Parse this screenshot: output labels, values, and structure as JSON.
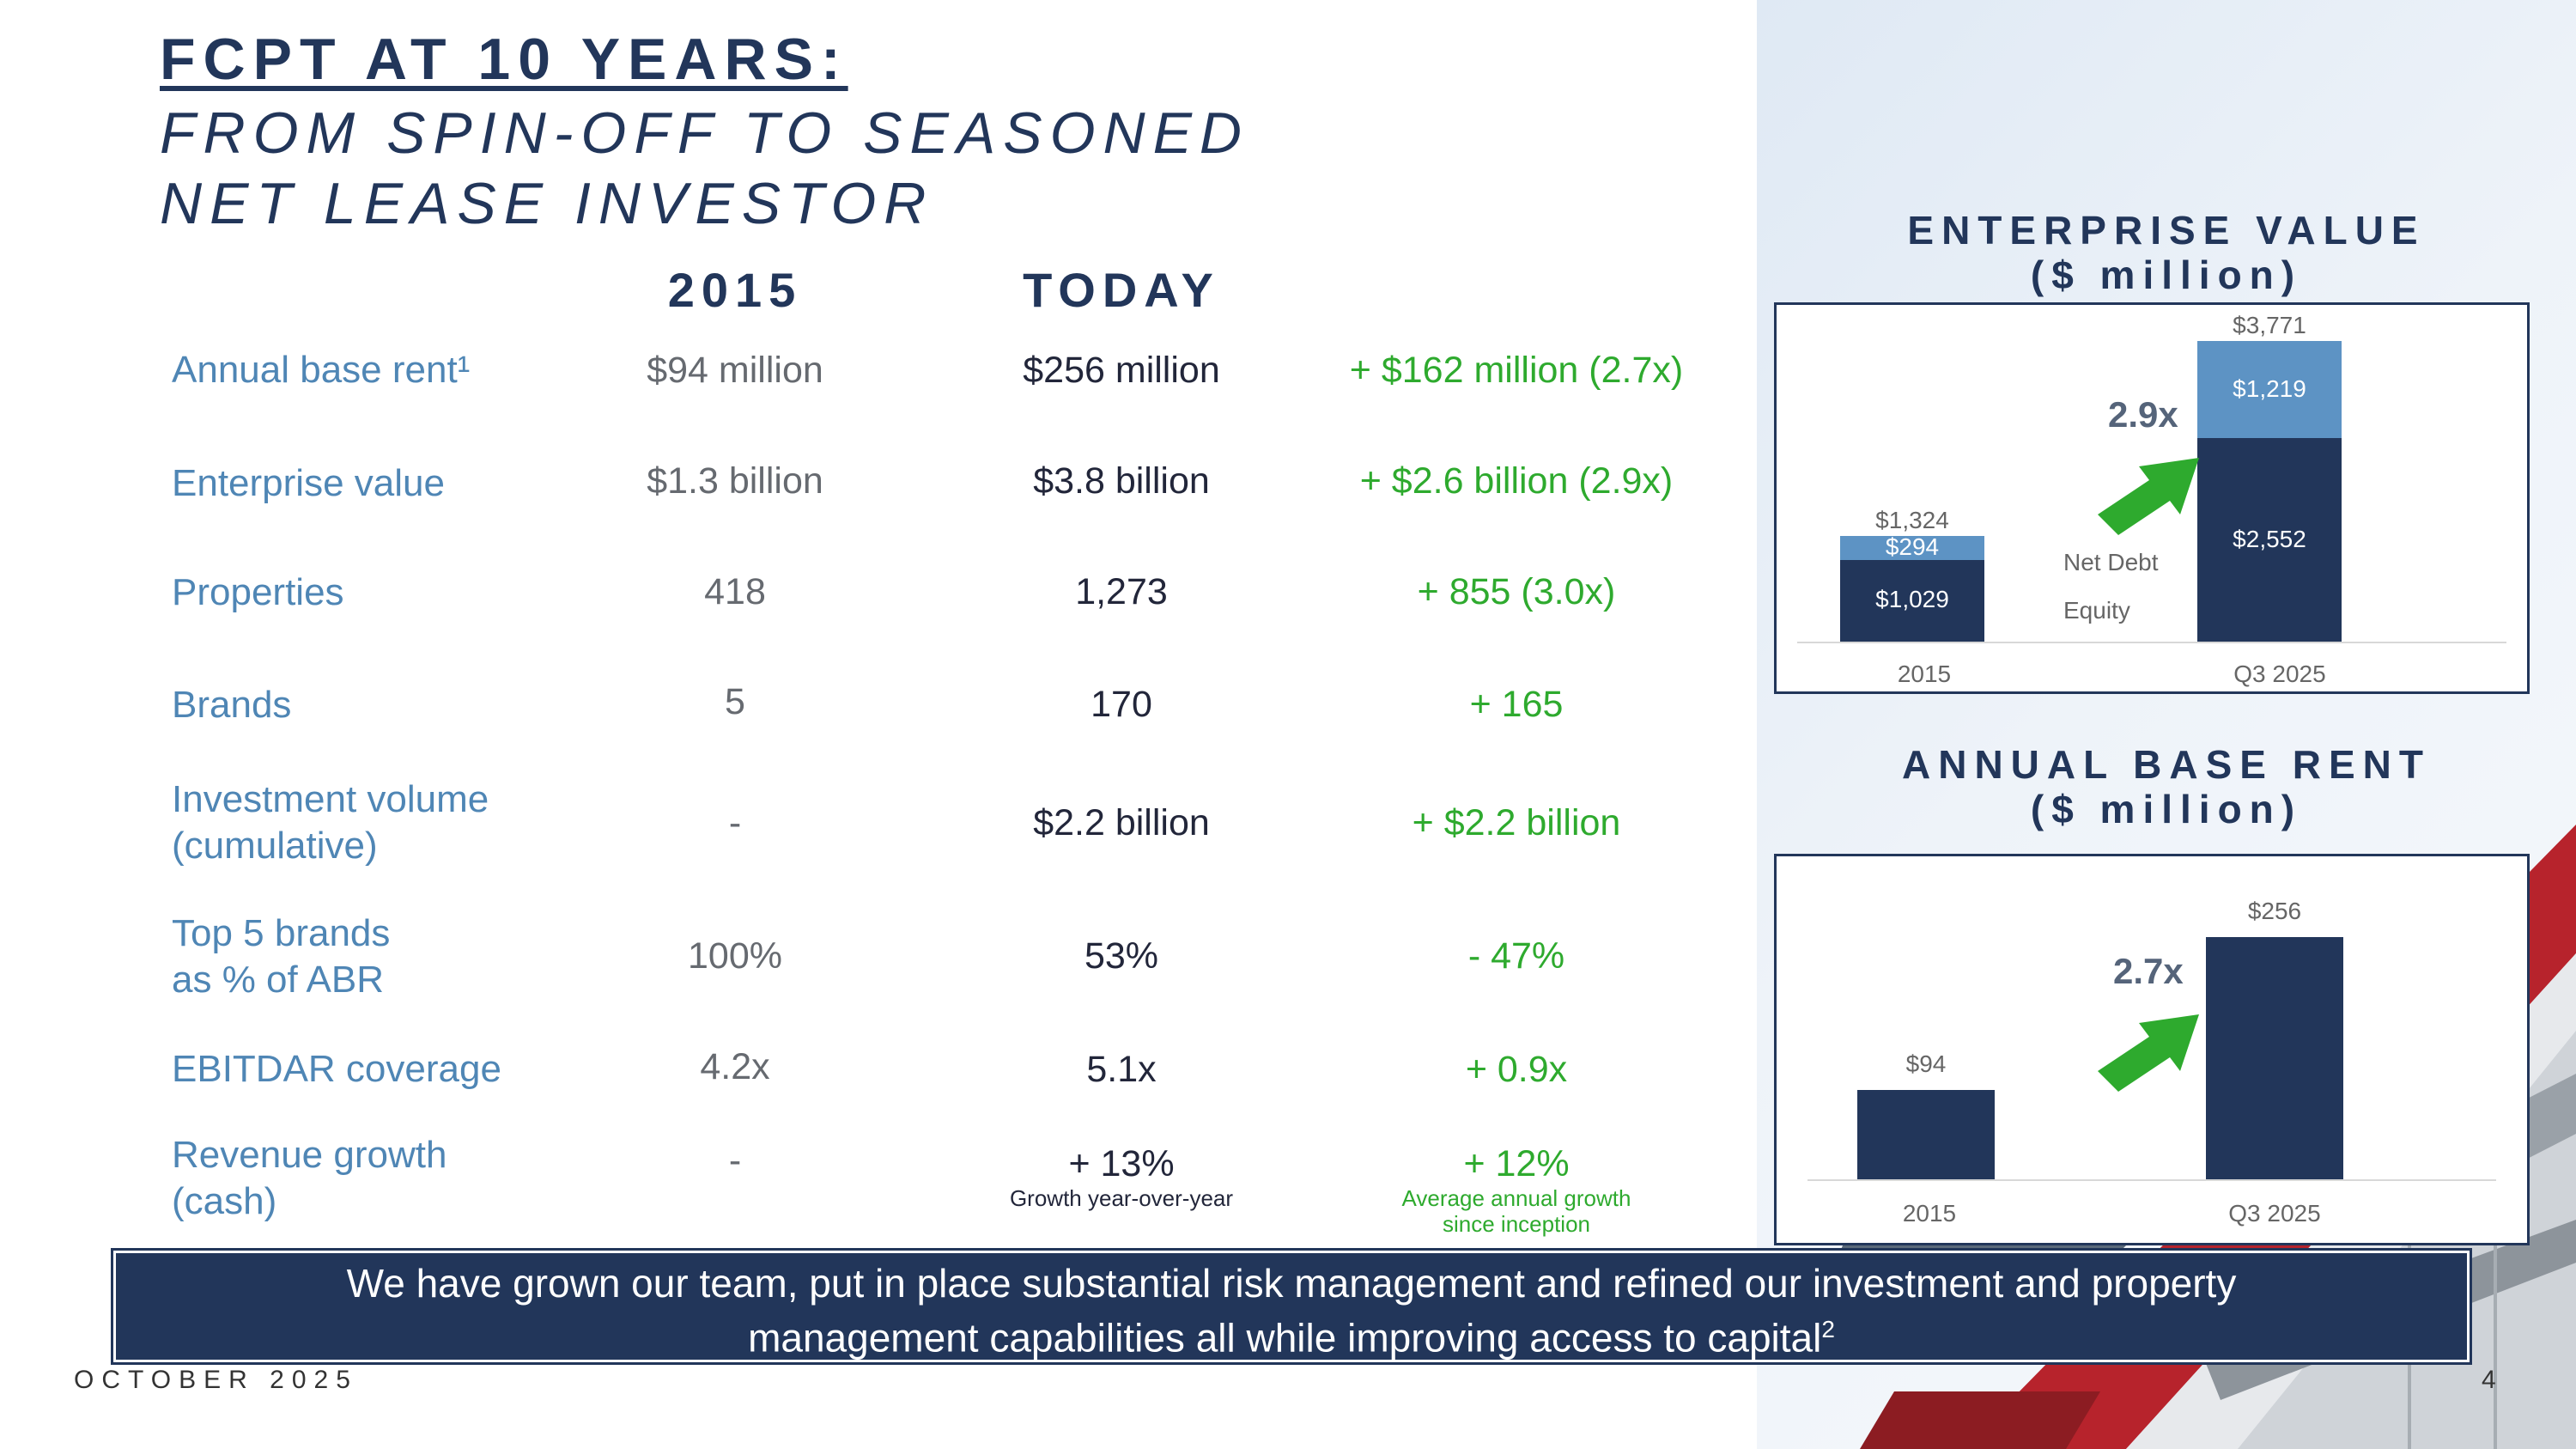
{
  "title": {
    "line1": "FCPT AT 10 YEARS:",
    "line2": "FROM SPIN-OFF TO SEASONED",
    "line3": "NET LEASE INVESTOR"
  },
  "table": {
    "headers": [
      "2015",
      "TODAY"
    ],
    "rows": [
      {
        "label": "Annual base rent¹",
        "v2015": "$94 million",
        "today": "$256 million",
        "change": "+ $162 million (2.7x)"
      },
      {
        "label": "Enterprise value",
        "v2015": "$1.3 billion",
        "today": "$3.8 billion",
        "change": "+ $2.6 billion (2.9x)"
      },
      {
        "label": "Properties",
        "v2015": "418",
        "today": "1,273",
        "change": "+ 855  (3.0x)"
      },
      {
        "label": "Brands",
        "v2015": "5",
        "today": "170",
        "change": "+ 165"
      },
      {
        "label": "Investment volume",
        "label2": "(cumulative)",
        "v2015": "-",
        "today": "$2.2 billion",
        "change": "+ $2.2 billion"
      },
      {
        "label": "Top 5 brands",
        "label2": "as % of ABR",
        "v2015": "100%",
        "today": "53%",
        "change": "- 47%"
      },
      {
        "label": "EBITDAR coverage",
        "v2015": "4.2x",
        "today": "5.1x",
        "change": "+ 0.9x"
      },
      {
        "label": "Revenue growth",
        "label2": "(cash)",
        "v2015": "-",
        "today": "+ 13%",
        "today_note": "Growth year-over-year",
        "change": "+ 12%",
        "change_note1": "Average annual growth",
        "change_note2": "since inception"
      }
    ]
  },
  "banner": {
    "line1": "We have grown our team, put in place substantial risk management and refined our investment and property",
    "line2": "management capabilities all while improving access to capital",
    "sup": "2"
  },
  "footer": {
    "date": "OCTOBER 2025",
    "page": "4"
  },
  "charts": {
    "enterprise_value": {
      "title1": "ENTERPRISE VALUE",
      "title2": "($ million)",
      "multiple": "2.9x",
      "legend_net_debt": "Net Debt",
      "legend_equity": "Equity",
      "categories": [
        "2015",
        "Q3 2025"
      ],
      "totals": [
        "$1,324",
        "$3,771"
      ],
      "net_debt_labels": [
        "$294",
        "$1,219"
      ],
      "equity_labels": [
        "$1,029",
        "$2,552"
      ]
    },
    "annual_base_rent": {
      "title1": "ANNUAL BASE RENT",
      "title2": "($ million)",
      "multiple": "2.7x",
      "categories": [
        "2015",
        "Q3 2025"
      ],
      "labels": [
        "$94",
        "$256"
      ]
    }
  },
  "chart_data": [
    {
      "type": "bar",
      "title": "ENTERPRISE VALUE ($ million)",
      "categories": [
        "2015",
        "Q3 2025"
      ],
      "series": [
        {
          "name": "Equity",
          "values": [
            1029,
            2552
          ],
          "color": "#22365a"
        },
        {
          "name": "Net Debt",
          "values": [
            294,
            1219
          ],
          "color": "#5d93c4"
        }
      ],
      "totals": [
        1324,
        3771
      ],
      "stacked": true,
      "annotation": "2.9x"
    },
    {
      "type": "bar",
      "title": "ANNUAL BASE RENT ($ million)",
      "categories": [
        "2015",
        "Q3 2025"
      ],
      "series": [
        {
          "values": [
            94,
            256
          ],
          "color": "#22365a"
        }
      ],
      "annotation": "2.7x"
    }
  ],
  "colors": {
    "navy": "#22365a",
    "label_blue": "#4f86b5",
    "green": "#2eaa2e",
    "light_blue": "#5d93c4"
  }
}
